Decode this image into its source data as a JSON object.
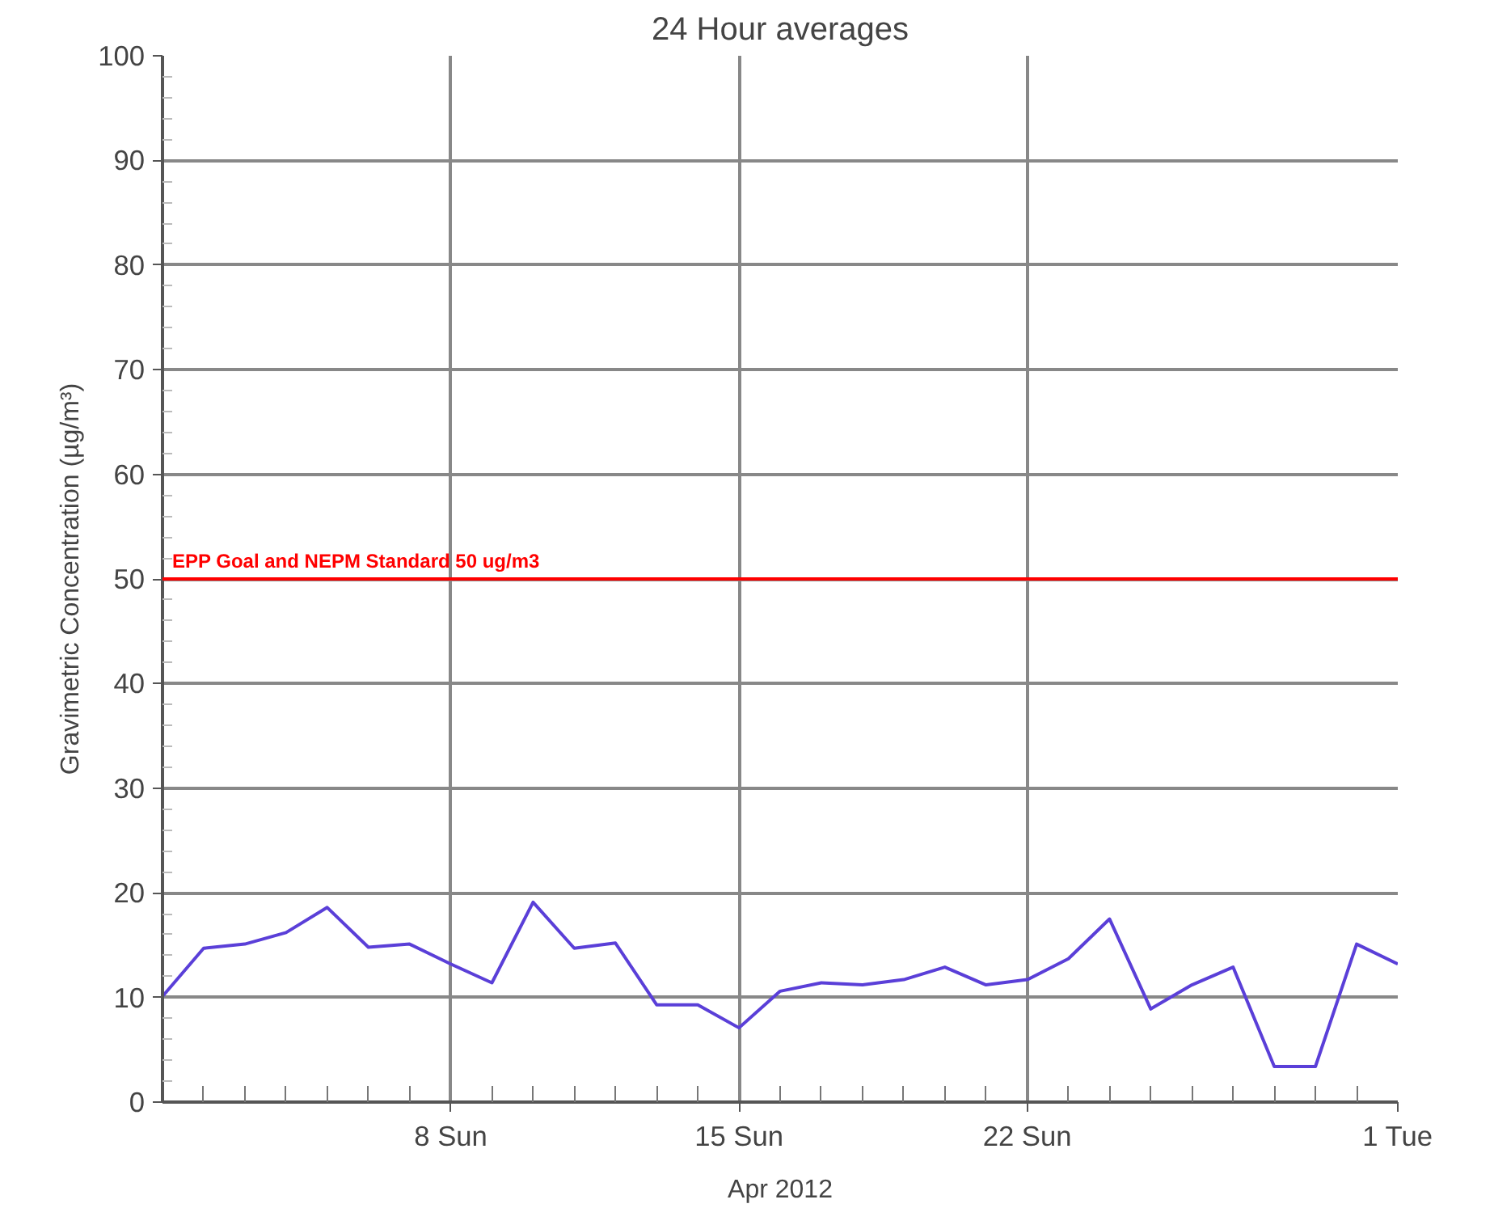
{
  "chart_data": {
    "type": "line",
    "subtitle": "24 Hour averages",
    "ylabel": "Gravimetric Concentration (µg/m³)",
    "xlabel": "Apr 2012",
    "x": [
      "2012-04-01",
      "2012-04-02",
      "2012-04-03",
      "2012-04-04",
      "2012-04-05",
      "2012-04-06",
      "2012-04-07",
      "2012-04-08",
      "2012-04-09",
      "2012-04-10",
      "2012-04-11",
      "2012-04-12",
      "2012-04-13",
      "2012-04-14",
      "2012-04-15",
      "2012-04-16",
      "2012-04-17",
      "2012-04-18",
      "2012-04-19",
      "2012-04-20",
      "2012-04-21",
      "2012-04-22",
      "2012-04-23",
      "2012-04-24",
      "2012-04-25",
      "2012-04-26",
      "2012-04-27",
      "2012-04-28",
      "2012-04-29",
      "2012-04-30",
      "2012-05-01"
    ],
    "series": [
      {
        "color": "#5a3fd8",
        "values": [
          10.1,
          14.7,
          15.1,
          16.2,
          18.6,
          14.8,
          15.1,
          13.2,
          11.4,
          19.1,
          14.7,
          15.2,
          9.3,
          9.3,
          7.1,
          10.6,
          11.4,
          11.2,
          11.7,
          12.9,
          11.2,
          11.7,
          13.7,
          17.5,
          8.9,
          11.2,
          12.9,
          3.4,
          3.4,
          15.1,
          13.2
        ]
      }
    ],
    "xlim": [
      "2012-04-01",
      "2012-05-01"
    ],
    "xticks": [
      {
        "value": "2012-04-01",
        "label": null
      },
      {
        "value": "2012-04-02",
        "label": null
      },
      {
        "value": "2012-04-03",
        "label": null
      },
      {
        "value": "2012-04-04",
        "label": null
      },
      {
        "value": "2012-04-05",
        "label": null
      },
      {
        "value": "2012-04-06",
        "label": null
      },
      {
        "value": "2012-04-07",
        "label": null
      },
      {
        "value": "2012-04-08",
        "label": "8 Sun"
      },
      {
        "value": "2012-04-09",
        "label": null
      },
      {
        "value": "2012-04-10",
        "label": null
      },
      {
        "value": "2012-04-11",
        "label": null
      },
      {
        "value": "2012-04-12",
        "label": null
      },
      {
        "value": "2012-04-13",
        "label": null
      },
      {
        "value": "2012-04-14",
        "label": null
      },
      {
        "value": "2012-04-15",
        "label": "15 Sun"
      },
      {
        "value": "2012-04-16",
        "label": null
      },
      {
        "value": "2012-04-17",
        "label": null
      },
      {
        "value": "2012-04-18",
        "label": null
      },
      {
        "value": "2012-04-19",
        "label": null
      },
      {
        "value": "2012-04-20",
        "label": null
      },
      {
        "value": "2012-04-21",
        "label": null
      },
      {
        "value": "2012-04-22",
        "label": "22 Sun"
      },
      {
        "value": "2012-04-23",
        "label": null
      },
      {
        "value": "2012-04-24",
        "label": null
      },
      {
        "value": "2012-04-25",
        "label": null
      },
      {
        "value": "2012-04-26",
        "label": null
      },
      {
        "value": "2012-04-27",
        "label": null
      },
      {
        "value": "2012-04-28",
        "label": null
      },
      {
        "value": "2012-04-29",
        "label": null
      },
      {
        "value": "2012-04-30",
        "label": null
      },
      {
        "value": "2012-05-01",
        "label": "1 Tue"
      }
    ],
    "ylim": [
      0,
      100
    ],
    "yticks": [
      0,
      {
        "value": 2,
        "label": null
      },
      {
        "value": 4,
        "label": null
      },
      {
        "value": 6,
        "label": null
      },
      {
        "value": 8,
        "label": null
      },
      10,
      {
        "value": 12,
        "label": null
      },
      {
        "value": 14,
        "label": null
      },
      {
        "value": 16,
        "label": null
      },
      {
        "value": 18,
        "label": null
      },
      20,
      {
        "value": 22,
        "label": null
      },
      {
        "value": 24,
        "label": null
      },
      {
        "value": 26,
        "label": null
      },
      {
        "value": 28,
        "label": null
      },
      30,
      {
        "value": 32,
        "label": null
      },
      {
        "value": 34,
        "label": null
      },
      {
        "value": 36,
        "label": null
      },
      {
        "value": 38,
        "label": null
      },
      40,
      {
        "value": 42,
        "label": null
      },
      {
        "value": 44,
        "label": null
      },
      {
        "value": 46,
        "label": null
      },
      {
        "value": 48,
        "label": null
      },
      50,
      {
        "value": 52,
        "label": null
      },
      {
        "value": 54,
        "label": null
      },
      {
        "value": 56,
        "label": null
      },
      {
        "value": 58,
        "label": null
      },
      60,
      {
        "value": 62,
        "label": null
      },
      {
        "value": 64,
        "label": null
      },
      {
        "value": 66,
        "label": null
      },
      {
        "value": 68,
        "label": null
      },
      70,
      {
        "value": 72,
        "label": null
      },
      {
        "value": 74,
        "label": null
      },
      {
        "value": 76,
        "label": null
      },
      {
        "value": 78,
        "label": null
      },
      80,
      {
        "value": 82,
        "label": null
      },
      {
        "value": 84,
        "label": null
      },
      {
        "value": 86,
        "label": null
      },
      {
        "value": 88,
        "label": null
      },
      90,
      {
        "value": 92,
        "label": null
      },
      {
        "value": 94,
        "label": null
      },
      {
        "value": 96,
        "label": null
      },
      {
        "value": 98,
        "label": null
      },
      100
    ],
    "ref_lines": [
      {
        "axis": "y",
        "value": 50,
        "label": "EPP Goal and NEPM Standard 50 ug/m3",
        "color": "#ff0000"
      }
    ],
    "grid": true,
    "marker": "none",
    "line_style": "solid"
  }
}
